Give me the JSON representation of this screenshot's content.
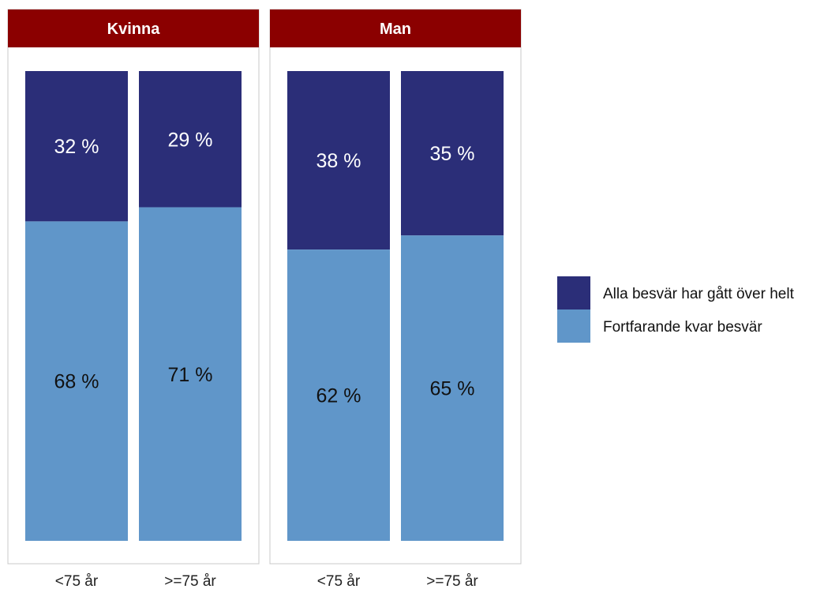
{
  "chart_data": {
    "type": "bar",
    "stacked": true,
    "percent": true,
    "facets": [
      {
        "title": "Kvinna",
        "categories": [
          "<75 år",
          ">=75 år"
        ],
        "series": [
          {
            "name": "Alla besvär har gått över helt",
            "values": [
              32,
              29
            ],
            "labels": [
              "32 %",
              "29 %"
            ]
          },
          {
            "name": "Fortfarande kvar besvär",
            "values": [
              68,
              71
            ],
            "labels": [
              "68 %",
              "71 %"
            ]
          }
        ]
      },
      {
        "title": "Man",
        "categories": [
          "<75 år",
          ">=75 år"
        ],
        "series": [
          {
            "name": "Alla besvär har gått över helt",
            "values": [
              38,
              35
            ],
            "labels": [
              "38 %",
              "35 %"
            ]
          },
          {
            "name": "Fortfarande kvar besvär",
            "values": [
              62,
              65
            ],
            "labels": [
              "62 %",
              "65 %"
            ]
          }
        ]
      }
    ],
    "ylim": [
      0,
      100
    ],
    "grid": false,
    "legend": {
      "placement": "right",
      "entries": [
        {
          "name": "Alla besvär har gått över helt",
          "color": "#2b2e78"
        },
        {
          "name": "Fortfarande kvar besvär",
          "color": "#6096c9"
        }
      ]
    },
    "colors": {
      "Alla besvär har gått över helt": "#2b2e78",
      "Fortfarande kvar besvär": "#6096c9",
      "header": "#8b0000"
    }
  }
}
